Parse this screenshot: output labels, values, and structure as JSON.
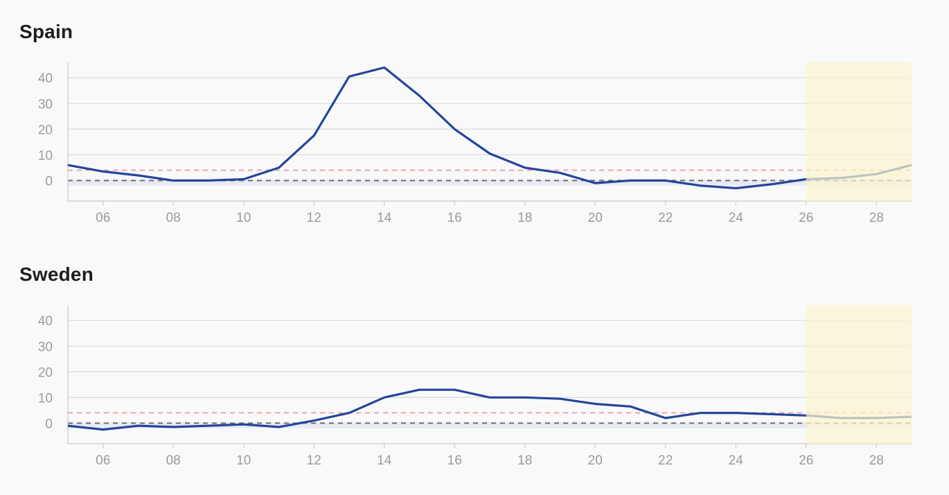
{
  "chart_data": [
    {
      "type": "line",
      "title": "Spain",
      "x": [
        5,
        6,
        7,
        8,
        9,
        10,
        11,
        12,
        13,
        14,
        15,
        16,
        17,
        18,
        19,
        20,
        21,
        22,
        23,
        24,
        25,
        26,
        27,
        28,
        29
      ],
      "xticks": [
        "06",
        "08",
        "10",
        "12",
        "14",
        "16",
        "18",
        "20",
        "22",
        "24",
        "26",
        "28"
      ],
      "xtick_values": [
        6,
        8,
        10,
        12,
        14,
        16,
        18,
        20,
        22,
        24,
        26,
        28
      ],
      "xlim": [
        5,
        29
      ],
      "yticks": [
        "0",
        "10",
        "20",
        "30",
        "40"
      ],
      "ytick_values": [
        0,
        10,
        20,
        30,
        40
      ],
      "ylim": [
        -8,
        46
      ],
      "series": [
        {
          "values": [
            6,
            3.5,
            2,
            0,
            0,
            0.5,
            5,
            17.5,
            40.5,
            44,
            33,
            20,
            10.5,
            5,
            3,
            -1,
            0,
            0,
            -2,
            -3,
            -1.5,
            0.5,
            1,
            2.5,
            6
          ],
          "color": "#22469a"
        }
      ],
      "reference_lines": [
        {
          "y": 4,
          "style": "dashed",
          "color": "#f0a3a3"
        },
        {
          "y": 0,
          "style": "dashed",
          "color": "#6b6b6b"
        }
      ],
      "band": {
        "y": [
          -2,
          0
        ],
        "color": "#e8ebf3"
      },
      "highlight": {
        "x": [
          26,
          29
        ],
        "color": "#fbf4cf"
      },
      "grid": true
    },
    {
      "type": "line",
      "title": "Sweden",
      "x": [
        5,
        6,
        7,
        8,
        9,
        10,
        11,
        12,
        13,
        14,
        15,
        16,
        17,
        18,
        19,
        20,
        21,
        22,
        23,
        24,
        25,
        26,
        27,
        28,
        29
      ],
      "xticks": [
        "06",
        "08",
        "10",
        "12",
        "14",
        "16",
        "18",
        "20",
        "22",
        "24",
        "26",
        "28"
      ],
      "xtick_values": [
        6,
        8,
        10,
        12,
        14,
        16,
        18,
        20,
        22,
        24,
        26,
        28
      ],
      "xlim": [
        5,
        29
      ],
      "yticks": [
        "0",
        "10",
        "20",
        "30",
        "40"
      ],
      "ytick_values": [
        0,
        10,
        20,
        30,
        40
      ],
      "ylim": [
        -8,
        46
      ],
      "series": [
        {
          "values": [
            -1,
            -2.5,
            -1,
            -1.5,
            -1,
            -0.5,
            -1.5,
            1,
            4,
            10,
            13,
            13,
            10,
            10,
            9.5,
            7.5,
            6.5,
            2,
            4,
            4,
            3.5,
            3,
            2,
            2,
            2.5
          ],
          "color": "#22469a"
        }
      ],
      "reference_lines": [
        {
          "y": 4,
          "style": "dashed",
          "color": "#f0a3a3"
        },
        {
          "y": 0,
          "style": "dashed",
          "color": "#6b6b6b"
        }
      ],
      "band": {
        "y": [
          -2,
          0
        ],
        "color": "#e8ebf3"
      },
      "highlight": {
        "x": [
          26,
          29
        ],
        "color": "#fbf4cf"
      },
      "grid": true
    }
  ]
}
